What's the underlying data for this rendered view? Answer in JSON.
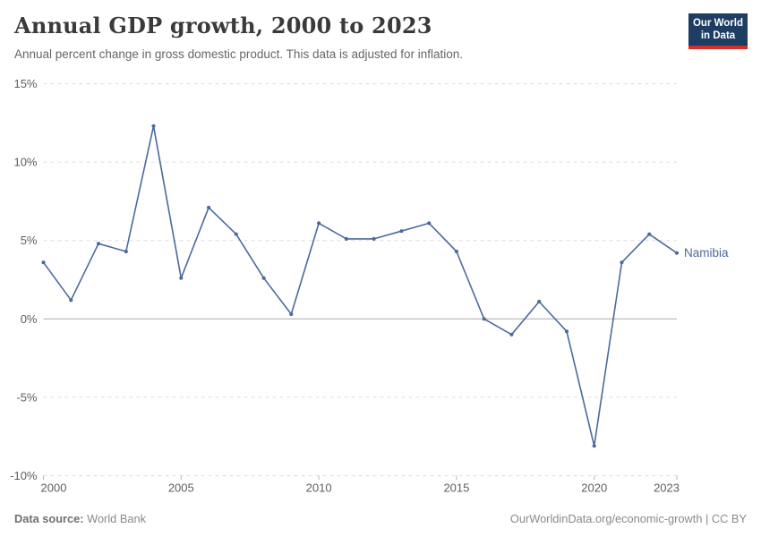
{
  "header": {
    "title": "Annual GDP growth, 2000 to 2023",
    "subtitle": "Annual percent change in gross domestic product. This data is adjusted for inflation.",
    "logo": {
      "line1": "Our World",
      "line2": "in Data"
    }
  },
  "chart_data": {
    "type": "line",
    "title": "Annual GDP growth, 2000 to 2023",
    "x": [
      2000,
      2001,
      2002,
      2003,
      2004,
      2005,
      2006,
      2007,
      2008,
      2009,
      2010,
      2011,
      2012,
      2013,
      2014,
      2015,
      2016,
      2017,
      2018,
      2019,
      2020,
      2021,
      2022,
      2023
    ],
    "series": [
      {
        "name": "Namibia",
        "color": "#4c6a9c",
        "values": [
          3.6,
          1.2,
          4.8,
          4.3,
          12.3,
          2.6,
          7.1,
          5.4,
          2.6,
          0.3,
          6.1,
          5.1,
          5.1,
          5.6,
          6.1,
          4.3,
          0.0,
          -1.0,
          1.1,
          -0.8,
          -8.1,
          3.6,
          5.4,
          4.2
        ]
      }
    ],
    "xlabel": "",
    "ylabel": "",
    "xlim": [
      2000,
      2023
    ],
    "ylim": [
      -10,
      15
    ],
    "xticks": [
      2000,
      2005,
      2010,
      2015,
      2020,
      2023
    ],
    "xtick_labels": [
      "2000",
      "2005",
      "2010",
      "2015",
      "2020",
      "2023"
    ],
    "yticks": [
      15,
      10,
      5,
      0,
      -5,
      -10
    ],
    "ytick_labels": [
      "15%",
      "10%",
      "5%",
      "0%",
      "-5%",
      "-10%"
    ],
    "grid": "horizontal-dashed",
    "zero_line": true,
    "legend_position": "end-of-line-label",
    "end_label": "Namibia"
  },
  "footer": {
    "source_label": "Data source:",
    "source_value": "World Bank",
    "credit": "OurWorldinData.org/economic-growth | CC BY"
  },
  "colors": {
    "line": "#4c6a9c",
    "grid": "#dedede",
    "zero_line": "#ababab",
    "axis_tick": "#b5b5b5",
    "tick_text": "#5e5e5e",
    "title_text": "#3a3a3a",
    "subtitle_text": "#666666",
    "logo_bg": "#1d3d63",
    "logo_bar": "#d4302a",
    "footer_text": "#8a8a8a"
  }
}
